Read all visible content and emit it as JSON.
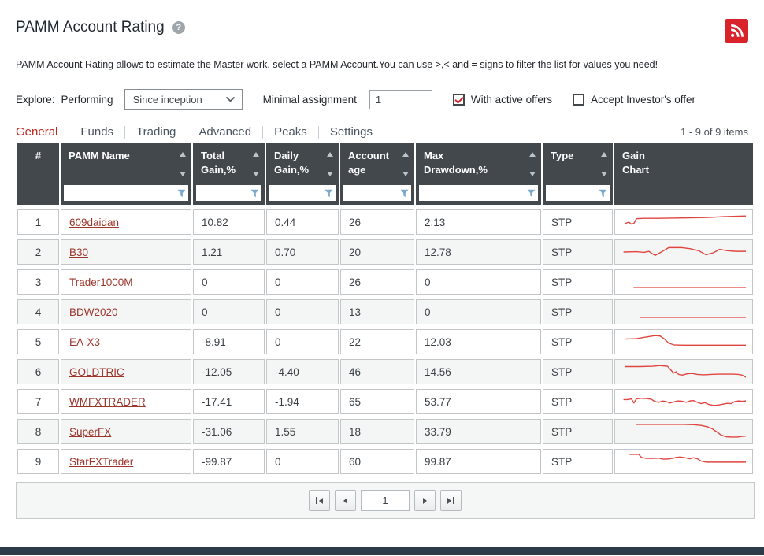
{
  "page": {
    "title": "PAMM Account Rating",
    "help_icon": "?",
    "description": "PAMM Account Rating allows to estimate the Master work, select a PAMM Account.You can use >,< and = signs to filter the list for values you need!",
    "items_count": "1 - 9 of 9 items"
  },
  "filters": {
    "explore_label": "Explore:",
    "performing_label": "Performing",
    "period_select_value": "Since inception",
    "minimal_assignment_label": "Minimal assignment",
    "minimal_assignment_value": "1",
    "with_active_offers": {
      "label": "With active offers",
      "checked": true
    },
    "accept_investors_offer": {
      "label": "Accept Investor's offer",
      "checked": false
    }
  },
  "tabs": [
    {
      "label": "General",
      "active": true
    },
    {
      "label": "Funds",
      "active": false
    },
    {
      "label": "Trading",
      "active": false
    },
    {
      "label": "Advanced",
      "active": false
    },
    {
      "label": "Peaks",
      "active": false
    },
    {
      "label": "Settings",
      "active": false
    }
  ],
  "table": {
    "columns": [
      {
        "key": "num",
        "label": "#",
        "sortable": false,
        "filterable": false
      },
      {
        "key": "name",
        "label": "PAMM Name",
        "sortable": true,
        "filterable": true
      },
      {
        "key": "total_gain",
        "label": "Total\nGain,%",
        "sortable": true,
        "filterable": true
      },
      {
        "key": "daily_gain",
        "label": "Daily\nGain,%",
        "sortable": true,
        "filterable": true
      },
      {
        "key": "age",
        "label": "Account\nage",
        "sortable": true,
        "filterable": true
      },
      {
        "key": "drawdown",
        "label": "Max\nDrawdown,%",
        "sortable": true,
        "filterable": true
      },
      {
        "key": "type",
        "label": "Type",
        "sortable": true,
        "filterable": true
      },
      {
        "key": "chart",
        "label": "Gain\nChart",
        "sortable": false,
        "filterable": false
      }
    ],
    "rows": [
      {
        "num": "1",
        "name": "609daidan",
        "total_gain": "10.82",
        "daily_gain": "0.44",
        "age": "26",
        "drawdown": "2.13",
        "type": "STP"
      },
      {
        "num": "2",
        "name": "B30",
        "total_gain": "1.21",
        "daily_gain": "0.70",
        "age": "20",
        "drawdown": "12.78",
        "type": "STP"
      },
      {
        "num": "3",
        "name": "Trader1000M",
        "total_gain": "0",
        "daily_gain": "0",
        "age": "26",
        "drawdown": "0",
        "type": "STP"
      },
      {
        "num": "4",
        "name": "BDW2020",
        "total_gain": "0",
        "daily_gain": "0",
        "age": "13",
        "drawdown": "0",
        "type": "STP"
      },
      {
        "num": "5",
        "name": "EA-X3",
        "total_gain": "-8.91",
        "daily_gain": "0",
        "age": "22",
        "drawdown": "12.03",
        "type": "STP"
      },
      {
        "num": "6",
        "name": "GOLDTRIC",
        "total_gain": "-12.05",
        "daily_gain": "-4.40",
        "age": "46",
        "drawdown": "14.56",
        "type": "STP"
      },
      {
        "num": "7",
        "name": "WMFXTRADER",
        "total_gain": "-17.41",
        "daily_gain": "-1.94",
        "age": "65",
        "drawdown": "53.77",
        "type": "STP"
      },
      {
        "num": "8",
        "name": "SuperFX",
        "total_gain": "-31.06",
        "daily_gain": "1.55",
        "age": "18",
        "drawdown": "33.79",
        "type": "STP"
      },
      {
        "num": "9",
        "name": "StarFXTrader",
        "total_gain": "-99.87",
        "daily_gain": "0",
        "age": "60",
        "drawdown": "99.87",
        "type": "STP"
      }
    ]
  },
  "chart_data": [
    {
      "type": "line",
      "name": "609daidan",
      "units": "normalized x0-100 / y0-30 (0=top)",
      "points": [
        [
          3,
          17
        ],
        [
          6,
          15
        ],
        [
          8,
          18
        ],
        [
          10,
          17
        ],
        [
          12,
          10
        ],
        [
          18,
          9.5
        ],
        [
          30,
          9.5
        ],
        [
          45,
          9
        ],
        [
          60,
          8.5
        ],
        [
          72,
          8
        ],
        [
          82,
          7
        ],
        [
          92,
          6.5
        ],
        [
          100,
          6
        ]
      ]
    },
    {
      "type": "line",
      "name": "B30",
      "units": "normalized",
      "points": [
        [
          2,
          15
        ],
        [
          12,
          14.5
        ],
        [
          18,
          15.5
        ],
        [
          22,
          14
        ],
        [
          27,
          20
        ],
        [
          32,
          15
        ],
        [
          38,
          8.5
        ],
        [
          48,
          8.5
        ],
        [
          55,
          10
        ],
        [
          62,
          13
        ],
        [
          68,
          19
        ],
        [
          74,
          16
        ],
        [
          79,
          11
        ],
        [
          85,
          13
        ],
        [
          92,
          14
        ],
        [
          100,
          14
        ]
      ]
    },
    {
      "type": "line",
      "name": "Trader1000M",
      "units": "normalized",
      "points": [
        [
          10,
          23
        ],
        [
          100,
          23
        ]
      ]
    },
    {
      "type": "line",
      "name": "BDW2020",
      "units": "normalized",
      "points": [
        [
          15,
          23
        ],
        [
          100,
          23
        ]
      ]
    },
    {
      "type": "line",
      "name": "EA-X3",
      "units": "normalized",
      "points": [
        [
          3,
          11
        ],
        [
          12,
          10.5
        ],
        [
          20,
          8
        ],
        [
          27,
          6
        ],
        [
          31,
          6.5
        ],
        [
          34,
          10
        ],
        [
          38,
          17
        ],
        [
          42,
          19.5
        ],
        [
          50,
          20
        ],
        [
          100,
          20
        ]
      ]
    },
    {
      "type": "line",
      "name": "GOLDTRIC",
      "units": "normalized",
      "points": [
        [
          3,
          7.5
        ],
        [
          15,
          7.5
        ],
        [
          25,
          7
        ],
        [
          31,
          6
        ],
        [
          34,
          6.5
        ],
        [
          37,
          7
        ],
        [
          40,
          13
        ],
        [
          42,
          17
        ],
        [
          44,
          15
        ],
        [
          46,
          19
        ],
        [
          49,
          20
        ],
        [
          53,
          18
        ],
        [
          57,
          17.5
        ],
        [
          61,
          19
        ],
        [
          66,
          19.5
        ],
        [
          72,
          19
        ],
        [
          78,
          18.5
        ],
        [
          84,
          18.5
        ],
        [
          90,
          18.5
        ],
        [
          94,
          19
        ],
        [
          97,
          20
        ],
        [
          100,
          23
        ]
      ]
    },
    {
      "type": "line",
      "name": "WMFXTRADER",
      "units": "normalized",
      "points": [
        [
          2,
          12
        ],
        [
          5,
          12
        ],
        [
          8,
          11
        ],
        [
          10,
          17
        ],
        [
          12,
          11
        ],
        [
          16,
          10
        ],
        [
          20,
          10.5
        ],
        [
          24,
          11.5
        ],
        [
          27,
          15
        ],
        [
          30,
          16
        ],
        [
          33,
          14
        ],
        [
          36,
          15
        ],
        [
          39,
          17
        ],
        [
          42,
          15.5
        ],
        [
          45,
          14
        ],
        [
          49,
          14.5
        ],
        [
          52,
          16
        ],
        [
          55,
          14
        ],
        [
          58,
          13.5
        ],
        [
          61,
          16
        ],
        [
          64,
          18
        ],
        [
          67,
          16.5
        ],
        [
          70,
          19
        ],
        [
          74,
          20.5
        ],
        [
          78,
          20
        ],
        [
          82,
          18.5
        ],
        [
          85,
          17.5
        ],
        [
          88,
          18
        ],
        [
          91,
          15
        ],
        [
          94,
          14
        ],
        [
          97,
          14.5
        ],
        [
          100,
          14
        ]
      ]
    },
    {
      "type": "line",
      "name": "SuperFX",
      "units": "normalized",
      "points": [
        [
          12,
          4.5
        ],
        [
          50,
          4.5
        ],
        [
          58,
          5
        ],
        [
          64,
          6
        ],
        [
          69,
          8
        ],
        [
          73,
          11
        ],
        [
          77,
          16
        ],
        [
          80,
          20
        ],
        [
          84,
          22.5
        ],
        [
          88,
          23
        ],
        [
          93,
          23
        ],
        [
          97,
          22
        ],
        [
          100,
          21.5
        ]
      ]
    },
    {
      "type": "line",
      "name": "StarFXTrader",
      "units": "normalized",
      "points": [
        [
          6,
          4.5
        ],
        [
          14,
          4.5
        ],
        [
          16,
          9
        ],
        [
          20,
          10.5
        ],
        [
          26,
          10.5
        ],
        [
          30,
          10
        ],
        [
          33,
          11.5
        ],
        [
          37,
          11.5
        ],
        [
          41,
          10.5
        ],
        [
          44,
          9
        ],
        [
          47,
          8.5
        ],
        [
          51,
          9.5
        ],
        [
          55,
          11
        ],
        [
          58,
          9.5
        ],
        [
          61,
          11
        ],
        [
          64,
          14.5
        ],
        [
          68,
          16
        ],
        [
          75,
          16
        ],
        [
          100,
          16
        ]
      ]
    }
  ],
  "pagination": {
    "page": "1"
  }
}
